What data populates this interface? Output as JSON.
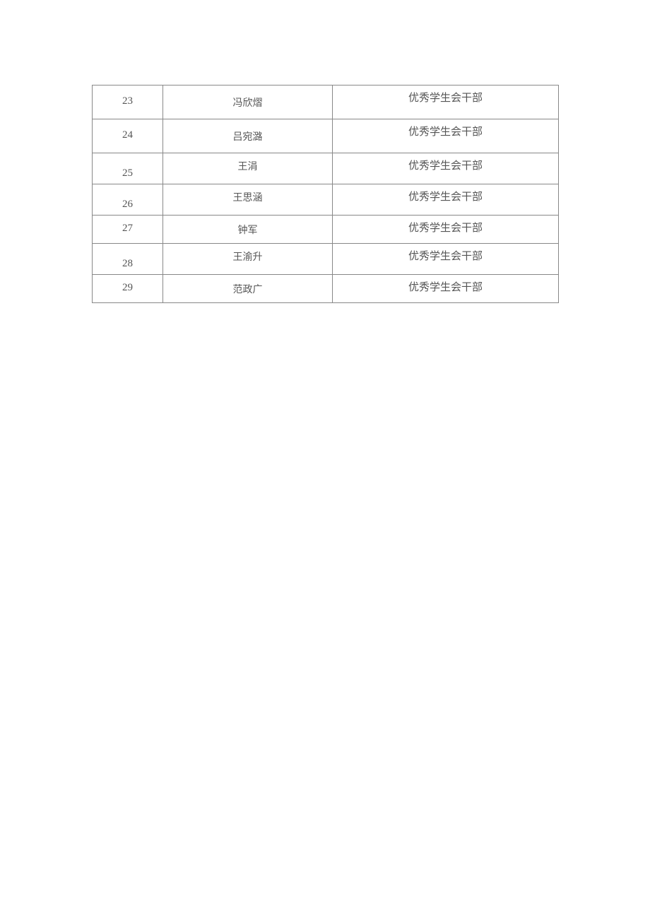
{
  "table": {
    "columns": {
      "num_width": 100,
      "name_width": 240,
      "award_width": 320
    },
    "border_color": "#888888",
    "text_color": "#555555",
    "background_color": "#ffffff",
    "font_family": "SimSun",
    "font_size_num": 15,
    "font_size_name": 14,
    "font_size_award": 15,
    "rows": [
      {
        "num": "23",
        "name": "冯欣熠",
        "award": "优秀学生会干部"
      },
      {
        "num": "24",
        "name": "吕宛潞",
        "award": "优秀学生会干部"
      },
      {
        "num": "25",
        "name": "王涓",
        "award": "优秀学生会干部"
      },
      {
        "num": "26",
        "name": "王思涵",
        "award": "优秀学生会干部"
      },
      {
        "num": "27",
        "name": "钟军",
        "award": "优秀学生会干部"
      },
      {
        "num": "28",
        "name": "王渝升",
        "award": "优秀学生会干部"
      },
      {
        "num": "29",
        "name": "范政广",
        "award": "优秀学生会干部"
      }
    ]
  }
}
